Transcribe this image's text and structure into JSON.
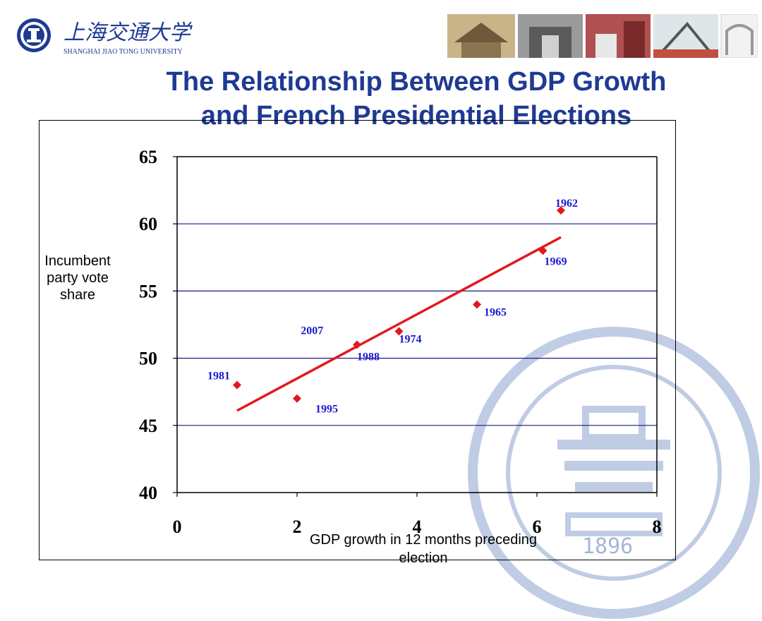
{
  "header": {
    "university_name_cn": "上海交通大学",
    "university_name_en": "SHANGHAI JIAO TONG UNIVERSITY"
  },
  "slide": {
    "title_line1": "The Relationship Between GDP Growth",
    "title_line2": "and French Presidential Elections"
  },
  "watermark": {
    "year": "1896"
  },
  "colors": {
    "title": "#1f3a93",
    "points": "#e0191e",
    "trend": "#e0191e",
    "labels": "#1a1acc",
    "grid": "#1a1a8c"
  },
  "chart_data": {
    "type": "scatter",
    "title": "",
    "xlabel": "GDP growth in 12 months preceding election",
    "ylabel": "Incumbent party vote share",
    "xlim": [
      0,
      8
    ],
    "ylim": [
      40,
      65
    ],
    "x_ticks": [
      0,
      2,
      4,
      6,
      8
    ],
    "y_ticks": [
      40,
      45,
      50,
      55,
      60,
      65
    ],
    "grid": "horizontal",
    "points": [
      {
        "label": "1962",
        "x": 6.4,
        "y": 61.0
      },
      {
        "label": "1969",
        "x": 6.1,
        "y": 58.0
      },
      {
        "label": "1965",
        "x": 5.0,
        "y": 54.0
      },
      {
        "label": "1974",
        "x": 3.7,
        "y": 52.0
      },
      {
        "label": "1988",
        "x": 3.0,
        "y": 51.0
      },
      {
        "label": "1981",
        "x": 1.0,
        "y": 48.0
      },
      {
        "label": "1995",
        "x": 2.0,
        "y": 47.0
      }
    ],
    "annotations": [
      {
        "text": "2007",
        "x": 2.25,
        "y": 52.0
      }
    ],
    "trendline": {
      "x1": 1.0,
      "y1": 46.1,
      "x2": 6.4,
      "y2": 59.0
    }
  }
}
